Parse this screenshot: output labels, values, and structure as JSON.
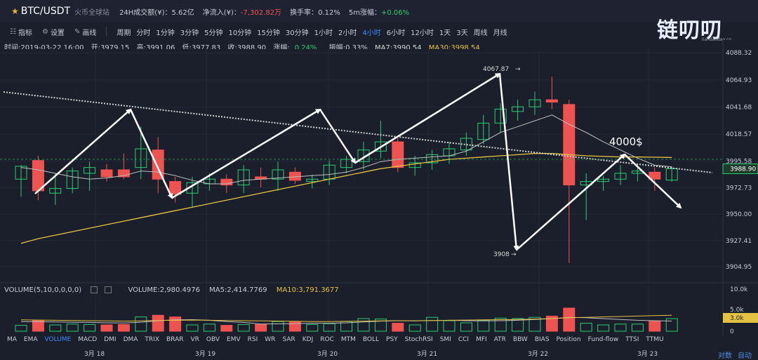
{
  "header": {
    "pair": "BTC/USDT",
    "exchange": "火币全球站",
    "volume_24h_label": "24H成交额(¥)：",
    "volume_24h_value": "5.62亿",
    "net_inflow_label": "净流入(¥)：",
    "net_inflow_value": "-7,302.82万",
    "turnover_label": "换手率：",
    "turnover_value": "0.12%",
    "change_5m_label": "5m涨幅：",
    "change_5m_value": "+0.06%"
  },
  "logo": {
    "text": "链叨叨",
    "sub": "liandaodao.cn"
  },
  "toolbar": {
    "indicator_label": "指标",
    "settings_label": "设置",
    "draw_label": "画线",
    "period_label": "周期",
    "periods": [
      "分时",
      "1分钟",
      "3分钟",
      "5分钟",
      "10分钟",
      "15分钟",
      "30分钟",
      "1小时",
      "2小时",
      "4小时",
      "6小时",
      "12小时",
      "1天",
      "3天",
      "周线",
      "月线"
    ],
    "active_period": "4小时"
  },
  "ohlc": {
    "time": "时间:2019-03-22 16:00",
    "open": "开:3979.15",
    "high": "高:3991.06",
    "low": "低:3977.83",
    "close": "收:3988.90",
    "change_label": "涨幅:",
    "change_value": "0.24%",
    "amplitude": "振幅:0.33%",
    "ma7": "MA7:3990.54",
    "ma30": "MA30:3998.54"
  },
  "price_axis": {
    "labels": [
      "4088.32",
      "4064.93",
      "4041.68",
      "4018.57",
      "3995.58",
      "3972.73",
      "3950.00",
      "3927.41",
      "3904.95"
    ],
    "current_price": "3988.90"
  },
  "annotations": {
    "high_label": "4067.87",
    "low_label": "3908",
    "target_label": "4000$"
  },
  "volume": {
    "title": "VOLUME(5,10,0,0,0,0)",
    "value": "VOLUME:2,980.4976",
    "ma5": "MA5:2,414.7769",
    "ma10": "MA10:3,791.3677",
    "axis_labels": [
      "10.0k",
      "5.0k",
      "0"
    ],
    "current": "3.0k"
  },
  "indicators": [
    "MA",
    "EMA",
    "VOLUME",
    "MACD",
    "DMI",
    "DMA",
    "TRIX",
    "BRAR",
    "VR",
    "OBV",
    "EMV",
    "RSI",
    "WR",
    "SAR",
    "KDJ",
    "ROC",
    "MTM",
    "BOLL",
    "PSY",
    "StochRSI",
    "SMI",
    "CCI",
    "MFI",
    "ATR",
    "BBW",
    "BIAS",
    "Position",
    "Fund-flow",
    "TTSI",
    "TTMU"
  ],
  "active_indicator": "VOLUME",
  "x_axis": [
    "3月 18",
    "3月 19",
    "3月 20",
    "3月 21",
    "3月 22",
    "3月 23"
  ],
  "corner": {
    "compare": "对数",
    "auto": "自动"
  },
  "colors": {
    "up": "#2ecc71",
    "down": "#ef5350",
    "ma30": "#e5c342",
    "active": "#3b8cff"
  },
  "chart_data": {
    "type": "candlestick",
    "candles": [
      {
        "o": 3980,
        "h": 3992,
        "l": 3965,
        "c": 3991
      },
      {
        "o": 3996,
        "h": 4000,
        "l": 3962,
        "c": 3970
      },
      {
        "o": 3968,
        "h": 3985,
        "l": 3958,
        "c": 3972
      },
      {
        "o": 3972,
        "h": 3990,
        "l": 3968,
        "c": 3987
      },
      {
        "o": 3985,
        "h": 3995,
        "l": 3970,
        "c": 3990
      },
      {
        "o": 3988,
        "h": 3993,
        "l": 3978,
        "c": 3982
      },
      {
        "o": 3988,
        "h": 4002,
        "l": 3980,
        "c": 3982
      },
      {
        "o": 3990,
        "h": 4025,
        "l": 3980,
        "c": 4006
      },
      {
        "o": 4005,
        "h": 4016,
        "l": 3968,
        "c": 3980
      },
      {
        "o": 3978,
        "h": 3982,
        "l": 3960,
        "c": 3967
      },
      {
        "o": 3968,
        "h": 3982,
        "l": 3956,
        "c": 3977
      },
      {
        "o": 3976,
        "h": 3985,
        "l": 3970,
        "c": 3980
      },
      {
        "o": 3980,
        "h": 3984,
        "l": 3968,
        "c": 3975
      },
      {
        "o": 3975,
        "h": 3992,
        "l": 3968,
        "c": 3988
      },
      {
        "o": 3982,
        "h": 3990,
        "l": 3973,
        "c": 3980
      },
      {
        "o": 3980,
        "h": 3995,
        "l": 3970,
        "c": 3988
      },
      {
        "o": 3986,
        "h": 3990,
        "l": 3976,
        "c": 3979
      },
      {
        "o": 3978,
        "h": 3984,
        "l": 3972,
        "c": 3980
      },
      {
        "o": 3980,
        "h": 3996,
        "l": 3975,
        "c": 3992
      },
      {
        "o": 3990,
        "h": 4000,
        "l": 3985,
        "c": 3997
      },
      {
        "o": 3995,
        "h": 4012,
        "l": 3988,
        "c": 4005
      },
      {
        "o": 4004,
        "h": 4030,
        "l": 3998,
        "c": 4012
      },
      {
        "o": 4012,
        "h": 4015,
        "l": 3986,
        "c": 3990
      },
      {
        "o": 3990,
        "h": 4000,
        "l": 3983,
        "c": 3994
      },
      {
        "o": 3994,
        "h": 4005,
        "l": 3988,
        "c": 4001
      },
      {
        "o": 4000,
        "h": 4012,
        "l": 3993,
        "c": 4006
      },
      {
        "o": 4005,
        "h": 4020,
        "l": 4000,
        "c": 4015
      },
      {
        "o": 4014,
        "h": 4035,
        "l": 4010,
        "c": 4028
      },
      {
        "o": 4028,
        "h": 4045,
        "l": 4020,
        "c": 4040
      },
      {
        "o": 4038,
        "h": 4048,
        "l": 4030,
        "c": 4042
      },
      {
        "o": 4042,
        "h": 4055,
        "l": 4035,
        "c": 4048
      },
      {
        "o": 4048,
        "h": 4067.87,
        "l": 4040,
        "c": 4046
      },
      {
        "o": 4044,
        "h": 4048,
        "l": 3908,
        "c": 3975
      },
      {
        "o": 3975,
        "h": 3985,
        "l": 3945,
        "c": 3978
      },
      {
        "o": 3978,
        "h": 3983,
        "l": 3970,
        "c": 3980
      },
      {
        "o": 3980,
        "h": 3992,
        "l": 3975,
        "c": 3985
      },
      {
        "o": 3985,
        "h": 3992,
        "l": 3978,
        "c": 3987
      },
      {
        "o": 3986,
        "h": 3990,
        "l": 3970,
        "c": 3980
      },
      {
        "o": 3979.15,
        "h": 3991.06,
        "l": 3977.83,
        "c": 3988.9
      }
    ],
    "ma7": [
      3990,
      3988,
      3985,
      3982,
      3980,
      3981,
      3983,
      3987,
      3986,
      3983,
      3979,
      3976,
      3976,
      3979,
      3980,
      3981,
      3982,
      3983,
      3984,
      3986,
      3990,
      3995,
      3997,
      3998,
      3999,
      4000,
      4004,
      4012,
      4020,
      4025,
      4030,
      4035,
      4027,
      4020,
      4012,
      4005,
      3998,
      3992,
      3990.54
    ],
    "ma30": [
      3925,
      3929,
      3932,
      3935,
      3938,
      3941,
      3944,
      3947,
      3950,
      3953,
      3956,
      3959,
      3962,
      3965,
      3968,
      3971,
      3974,
      3977,
      3980,
      3983,
      3986,
      3989,
      3991,
      3993,
      3995,
      3997,
      3998,
      3999,
      4000,
      4001,
      4002,
      4002,
      4001,
      4000,
      3999.5,
      3999,
      3999,
      3998.8,
      3998.54
    ],
    "volume": [
      1400,
      2600,
      1500,
      1700,
      1600,
      1500,
      1600,
      3400,
      3800,
      3400,
      1500,
      1700,
      1400,
      1600,
      1600,
      2300,
      2200,
      1600,
      1800,
      2300,
      3000,
      2900,
      1900,
      1500,
      3300,
      2500,
      2000,
      2600,
      3100,
      3000,
      3300,
      3600,
      5500,
      1900,
      1500,
      1700,
      1700,
      2400,
      2980
    ],
    "volume_ma5": [
      2300,
      2250,
      2200,
      2150,
      2100,
      2000,
      1950,
      2150,
      2500,
      2700,
      2750,
      2600,
      2300,
      2100,
      1700,
      1750,
      1800,
      1900,
      1900,
      2000,
      2200,
      2400,
      2500,
      2450,
      2550,
      2600,
      2500,
      2450,
      2500,
      2600,
      2800,
      3000,
      3300,
      3200,
      3000,
      2800,
      2600,
      2500,
      2414.78
    ],
    "volume_ma10": [
      2700,
      2650,
      2600,
      2550,
      2500,
      2450,
      2400,
      2450,
      2550,
      2600,
      2650,
      2600,
      2550,
      2500,
      2450,
      2400,
      2350,
      2300,
      2300,
      2350,
      2400,
      2450,
      2500,
      2500,
      2550,
      2600,
      2650,
      2700,
      2750,
      2800,
      2900,
      3000,
      3200,
      3300,
      3400,
      3500,
      3600,
      3700,
      3791.37
    ],
    "price_range": [
      3893,
      4095
    ],
    "volume_range": [
      0,
      10000
    ]
  }
}
